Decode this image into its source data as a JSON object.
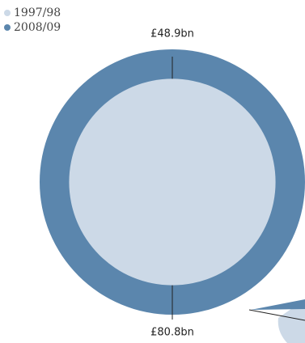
{
  "chart_data": {
    "type": "proportional-circle",
    "series": [
      {
        "name": "1997/98",
        "color": "#ccd9e7",
        "values": [
          48.9
        ],
        "value_labels": [
          "£48.9bn"
        ]
      },
      {
        "name": "2008/09",
        "color": "#5b86ad",
        "values": [
          80.8
        ],
        "value_labels": [
          "£80.8bn"
        ]
      }
    ]
  }
}
